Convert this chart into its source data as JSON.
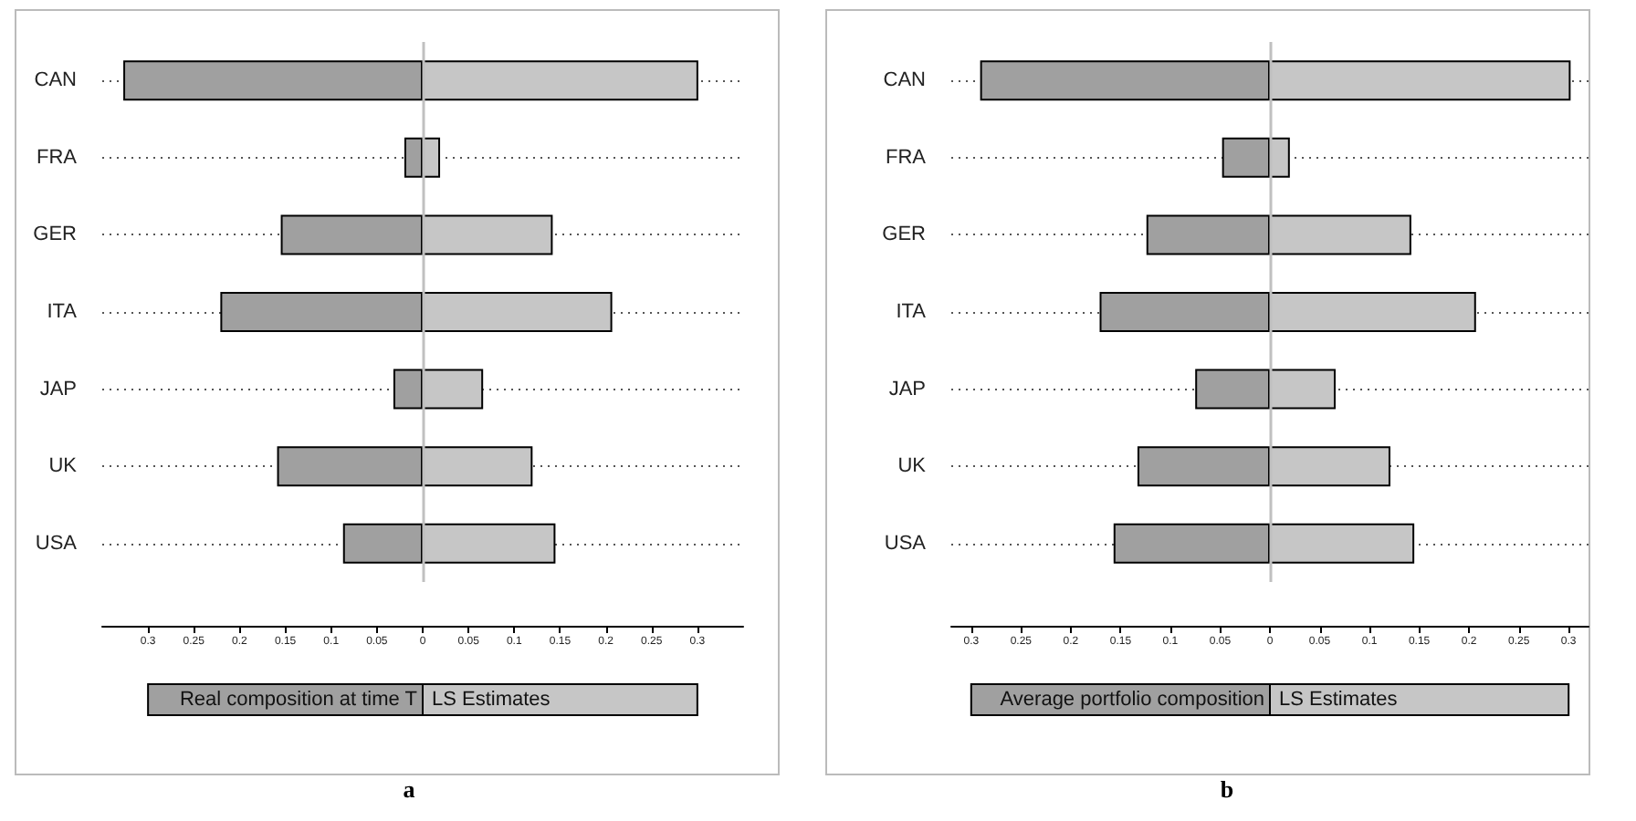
{
  "chart_data": [
    {
      "type": "bar",
      "title": "a",
      "orientation": "horizontal",
      "stacked": true,
      "categories": [
        "CAN",
        "FRA",
        "GER",
        "ITA",
        "JAP",
        "UK",
        "USA"
      ],
      "series": [
        {
          "name": "Real composition at time T",
          "color": "#a0a0a0",
          "values": [
            -0.327,
            -0.02,
            -0.155,
            -0.221,
            -0.032,
            -0.159,
            -0.087
          ]
        },
        {
          "name": "LS Estimates",
          "color": "#c6c6c6",
          "values": [
            0.301,
            0.019,
            0.142,
            0.207,
            0.066,
            0.12,
            0.145
          ]
        }
      ],
      "xlim": [
        -0.35,
        0.35
      ],
      "xticks": [
        {
          "value": -0.3,
          "label": "0.3"
        },
        {
          "value": -0.25,
          "label": "0.25"
        },
        {
          "value": -0.2,
          "label": "0.2"
        },
        {
          "value": -0.15,
          "label": "0.15"
        },
        {
          "value": -0.1,
          "label": "0.1"
        },
        {
          "value": -0.05,
          "label": "0.05"
        },
        0,
        0.05,
        0.1,
        0.15,
        0.2,
        0.25,
        0.3
      ],
      "ref_lines": [
        {
          "axis": "x",
          "value": 0,
          "color": "#c0c0c0"
        }
      ],
      "grid": "y",
      "legend": "bottom"
    },
    {
      "type": "bar",
      "title": "b",
      "orientation": "horizontal",
      "stacked": true,
      "categories": [
        "CAN",
        "FRA",
        "GER",
        "ITA",
        "JAP",
        "UK",
        "USA"
      ],
      "series": [
        {
          "name": "Average portfolio composition",
          "color": "#a0a0a0",
          "values": [
            -0.291,
            -0.048,
            -0.124,
            -0.171,
            -0.075,
            -0.133,
            -0.157
          ]
        },
        {
          "name": "LS Estimates",
          "color": "#c6c6c6",
          "values": [
            0.302,
            0.02,
            0.142,
            0.207,
            0.066,
            0.121,
            0.145
          ]
        }
      ],
      "xlim": [
        -0.32,
        0.32
      ],
      "xticks": [
        {
          "value": -0.3,
          "label": "0.3"
        },
        {
          "value": -0.25,
          "label": "0.25"
        },
        {
          "value": -0.2,
          "label": "0.2"
        },
        {
          "value": -0.15,
          "label": "0.15"
        },
        {
          "value": -0.1,
          "label": "0.1"
        },
        {
          "value": -0.05,
          "label": "0.05"
        },
        0,
        0.05,
        0.1,
        0.15,
        0.2,
        0.25,
        0.3
      ],
      "ref_lines": [
        {
          "axis": "x",
          "value": 0,
          "color": "#c0c0c0"
        }
      ],
      "grid": "y",
      "legend": "bottom"
    }
  ]
}
